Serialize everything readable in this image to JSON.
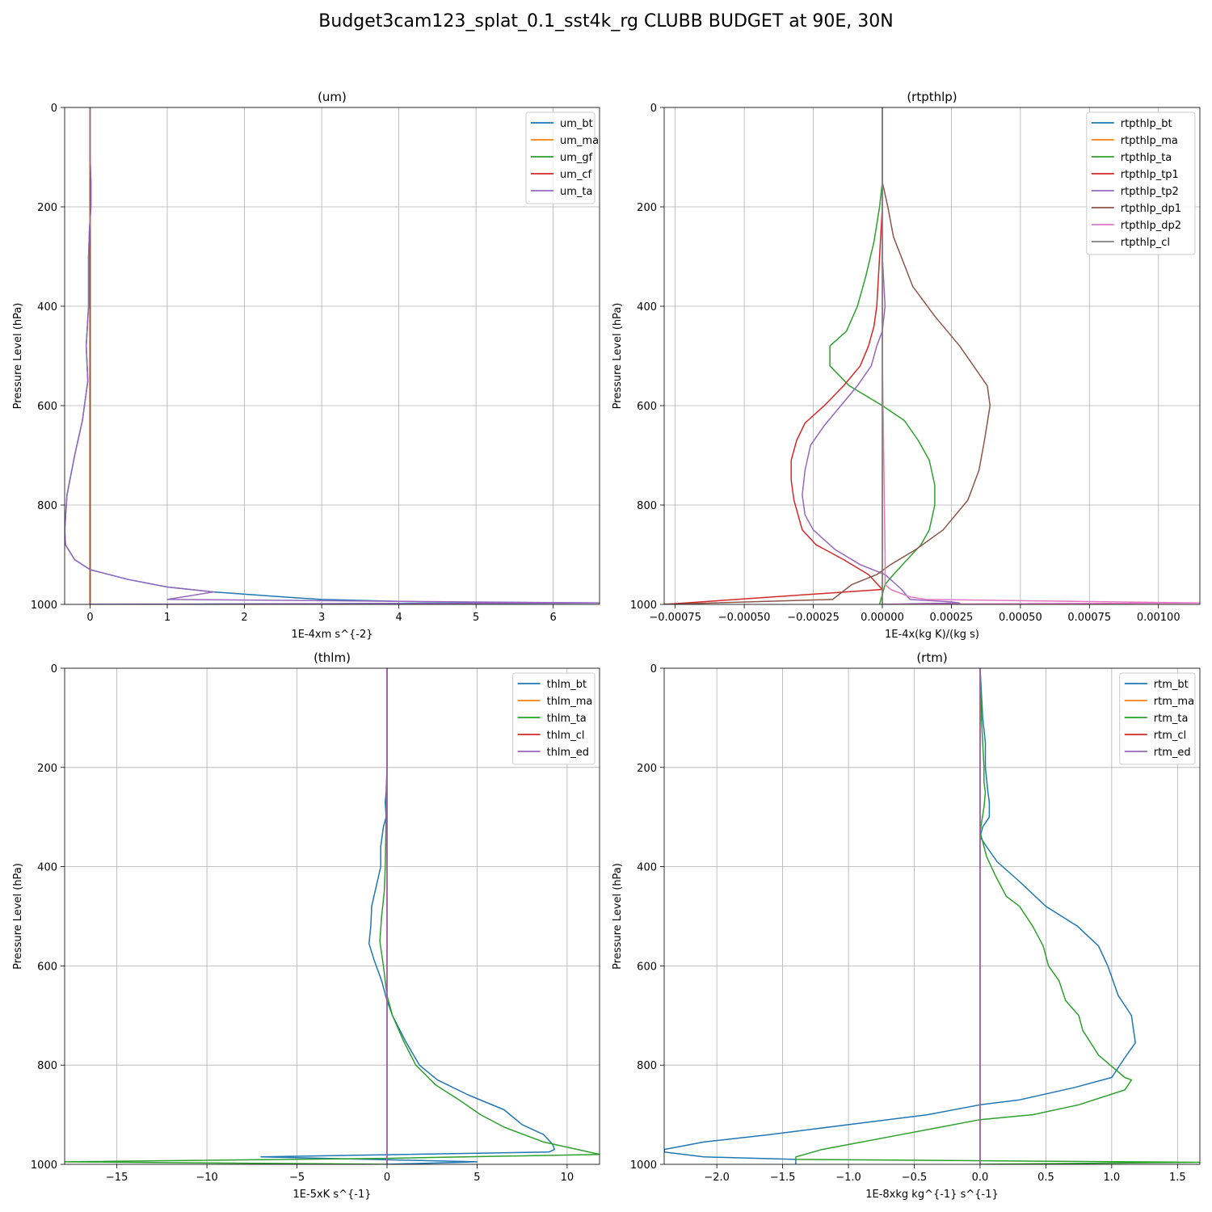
{
  "suptitle": "Budget3cam123_splat_0.1_sst4k_rg CLUBB BUDGET at 90E, 30N",
  "colors": {
    "C0": "#1f77b4",
    "C1": "#ff7f0e",
    "C2": "#2ca02c",
    "C3": "#d62728",
    "C4": "#9467bd",
    "C5": "#8c564b",
    "C6": "#e377c2",
    "C7": "#7f7f7f",
    "grid": "#b0b0b0"
  },
  "chart_data": [
    {
      "type": "line",
      "title": "(um)",
      "xlabel": "1E-4xm s^{-2}",
      "ylabel": "Pressure Level (hPa)",
      "xlim": [
        -0.33,
        6.6
      ],
      "ylim": [
        1000,
        0
      ],
      "xticks": [
        0,
        1,
        2,
        3,
        4,
        5,
        6
      ],
      "xtick_labels": [
        "0",
        "1",
        "2",
        "3",
        "4",
        "5",
        "6"
      ],
      "yticks": [
        0,
        200,
        400,
        600,
        800,
        1000
      ],
      "ytick_labels": [
        "0",
        "200",
        "400",
        "600",
        "800",
        "1000"
      ],
      "grid": true,
      "legend_position": "top-right",
      "series": [
        {
          "name": "um_bt",
          "color": "C0",
          "x": [
            0,
            0,
            0.01,
            0.01,
            -0.01,
            -0.02,
            -0.02,
            -0.05,
            -0.03,
            -0.1,
            -0.2,
            -0.3,
            -0.33,
            -0.32,
            -0.2,
            0,
            0.5,
            1.0,
            1.6,
            2.5,
            3.0,
            4.3,
            6.6,
            0
          ],
          "y": [
            0,
            100,
            150,
            200,
            250,
            300,
            400,
            480,
            550,
            630,
            700,
            780,
            850,
            880,
            910,
            930,
            950,
            965,
            975,
            985,
            990,
            995,
            997,
            1000
          ]
        },
        {
          "name": "um_ma",
          "color": "C1",
          "x": [
            0,
            0
          ],
          "y": [
            0,
            1000
          ]
        },
        {
          "name": "um_gf",
          "color": "C2",
          "x": [
            0,
            0
          ],
          "y": [
            0,
            1000
          ]
        },
        {
          "name": "um_cf",
          "color": "C3",
          "x": [
            0,
            0,
            0
          ],
          "y": [
            0,
            995,
            1000
          ]
        },
        {
          "name": "um_ta",
          "color": "C4",
          "x": [
            0,
            0,
            0.01,
            0.01,
            -0.01,
            -0.02,
            -0.02,
            -0.05,
            -0.03,
            -0.1,
            -0.2,
            -0.3,
            -0.33,
            -0.32,
            -0.2,
            0,
            0.5,
            1.0,
            1.6,
            1.0,
            6.6,
            0
          ],
          "y": [
            0,
            100,
            150,
            200,
            250,
            300,
            400,
            480,
            550,
            630,
            700,
            780,
            850,
            880,
            910,
            930,
            950,
            965,
            975,
            990,
            997,
            1000
          ]
        }
      ]
    },
    {
      "type": "line",
      "title": "(rtpthlp)",
      "xlabel": "1E-4x(kg K)/(kg s)",
      "ylabel": "Pressure Level (hPa)",
      "xlim": [
        -0.00079,
        0.00115
      ],
      "ylim": [
        1000,
        0
      ],
      "xticks": [
        -0.00075,
        -0.0005,
        -0.00025,
        0,
        0.00025,
        0.0005,
        0.00075,
        0.001
      ],
      "xtick_labels": [
        "−0.00075",
        "−0.00050",
        "−0.00025",
        "0.00000",
        "0.00025",
        "0.00050",
        "0.00075",
        "0.00100"
      ],
      "yticks": [
        0,
        200,
        400,
        600,
        800,
        1000
      ],
      "ytick_labels": [
        "0",
        "200",
        "400",
        "600",
        "800",
        "1000"
      ],
      "grid": true,
      "legend_position": "top-right",
      "series": [
        {
          "name": "rtpthlp_bt",
          "color": "C0",
          "x": [
            0,
            0,
            0
          ],
          "y": [
            0,
            995,
            1000
          ]
        },
        {
          "name": "rtpthlp_ma",
          "color": "C1",
          "x": [
            0,
            0
          ],
          "y": [
            0,
            1000
          ]
        },
        {
          "name": "rtpthlp_ta",
          "color": "C2",
          "x": [
            0,
            0,
            -1e-05,
            -3e-05,
            -6e-05,
            -9e-05,
            -0.00013,
            -0.00019,
            -0.00019,
            -0.00012,
            0,
            8e-05,
            0.00013,
            0.00017,
            0.00019,
            0.00019,
            0.00017,
            0.00014,
            9e-05,
            4e-05,
            1e-05,
            0,
            -1e-05
          ],
          "y": [
            0,
            150,
            200,
            270,
            340,
            400,
            450,
            480,
            520,
            560,
            600,
            630,
            670,
            710,
            760,
            800,
            850,
            880,
            910,
            940,
            960,
            980,
            1000
          ]
        },
        {
          "name": "rtpthlp_tp1",
          "color": "C3",
          "x": [
            0,
            0,
            -1e-05,
            -2e-05,
            -3e-05,
            -5e-05,
            -8e-05,
            -0.00014,
            -0.00021,
            -0.00028,
            -0.00031,
            -0.00033,
            -0.00033,
            -0.00032,
            -0.00029,
            -0.00024,
            -0.00014,
            -5e-05,
            0,
            -0.00079
          ],
          "y": [
            0,
            200,
            300,
            400,
            440,
            480,
            520,
            560,
            600,
            635,
            670,
            710,
            750,
            790,
            850,
            880,
            910,
            940,
            970,
            1000
          ]
        },
        {
          "name": "rtpthlp_tp2",
          "color": "C4",
          "x": [
            0,
            0,
            1e-05,
            0,
            -2e-05,
            -4e-05,
            -9e-05,
            -0.00015,
            -0.00021,
            -0.00026,
            -0.00028,
            -0.00029,
            -0.00028,
            -0.00025,
            -0.00017,
            -8e-05,
            1e-05,
            7e-05,
            0.0001,
            0.00025,
            0.00028,
            0
          ],
          "y": [
            0,
            300,
            400,
            450,
            480,
            520,
            560,
            600,
            640,
            680,
            730,
            780,
            820,
            850,
            890,
            920,
            940,
            970,
            990,
            995,
            997,
            1000
          ]
        },
        {
          "name": "rtpthlp_dp1",
          "color": "C5",
          "x": [
            0,
            0,
            2e-05,
            4e-05,
            0.00011,
            0.00019,
            0.00028,
            0.00033,
            0.00038,
            0.00039,
            0.00037,
            0.00035,
            0.00031,
            0.00022,
            0.00012,
            3e-05,
            -2e-05,
            -0.00011,
            -0.00018,
            -0.00079
          ],
          "y": [
            0,
            150,
            200,
            260,
            360,
            420,
            480,
            520,
            560,
            600,
            670,
            730,
            790,
            850,
            890,
            920,
            940,
            960,
            990,
            1000
          ]
        },
        {
          "name": "rtpthlp_dp2",
          "color": "C6",
          "x": [
            0,
            0,
            1e-05,
            1e-05,
            3e-05,
            0.0001,
            0.00016,
            0.00115,
            0
          ],
          "y": [
            0,
            500,
            900,
            960,
            970,
            985,
            990,
            997,
            1000
          ]
        },
        {
          "name": "rtpthlp_cl",
          "color": "C7",
          "x": [
            0,
            0
          ],
          "y": [
            0,
            1000
          ]
        }
      ]
    },
    {
      "type": "line",
      "title": "(thlm)",
      "xlabel": "1E-5xK s^{-1}",
      "ylabel": "Pressure Level (hPa)",
      "xlim": [
        -17.9,
        11.8
      ],
      "ylim": [
        1000,
        0
      ],
      "xticks": [
        -15,
        -10,
        -5,
        0,
        5,
        10
      ],
      "xtick_labels": [
        "−15",
        "−10",
        "−5",
        "0",
        "5",
        "10"
      ],
      "yticks": [
        0,
        200,
        400,
        600,
        800,
        1000
      ],
      "ytick_labels": [
        "0",
        "200",
        "400",
        "600",
        "800",
        "1000"
      ],
      "grid": true,
      "legend_position": "top-right",
      "series": [
        {
          "name": "thlm_bt",
          "color": "C0",
          "x": [
            0,
            0,
            -0.05,
            -0.1,
            -0.05,
            -0.2,
            -0.35,
            -0.35,
            -0.85,
            -0.9,
            -1.0,
            -0.7,
            -0.3,
            0,
            0.3,
            1.0,
            1.8,
            2.8,
            4.5,
            6.5,
            7.5,
            8.7,
            9.2,
            9.3,
            9.0,
            -7.0,
            5.0,
            0
          ],
          "y": [
            0,
            200,
            250,
            270,
            300,
            320,
            360,
            400,
            480,
            520,
            555,
            590,
            630,
            670,
            700,
            750,
            800,
            830,
            860,
            890,
            920,
            940,
            960,
            970,
            975,
            985,
            995,
            1000
          ]
        },
        {
          "name": "thlm_ma",
          "color": "C1",
          "x": [
            0,
            0
          ],
          "y": [
            0,
            1000
          ]
        },
        {
          "name": "thlm_ta",
          "color": "C2",
          "x": [
            0,
            0,
            -0.05,
            -0.1,
            -0.15,
            -0.3,
            -0.4,
            -0.2,
            0,
            0.3,
            0.9,
            1.6,
            2.7,
            4.0,
            5.2,
            6.5,
            8.7,
            11.8,
            0,
            -17.9,
            0
          ],
          "y": [
            0,
            200,
            300,
            400,
            450,
            500,
            550,
            600,
            660,
            700,
            750,
            800,
            840,
            870,
            900,
            925,
            955,
            980,
            988,
            995,
            1000
          ]
        },
        {
          "name": "thlm_cl",
          "color": "C3",
          "x": [
            0,
            0
          ],
          "y": [
            0,
            1000
          ]
        },
        {
          "name": "thlm_ed",
          "color": "C4",
          "x": [
            0,
            0
          ],
          "y": [
            0,
            1000
          ]
        }
      ]
    },
    {
      "type": "line",
      "title": "(rtm)",
      "xlabel": "1E-8xkg kg^{-1} s^{-1}",
      "ylabel": "Pressure Level (hPa)",
      "xlim": [
        -2.4,
        1.67
      ],
      "ylim": [
        1000,
        0
      ],
      "xticks": [
        -2.0,
        -1.5,
        -1.0,
        -0.5,
        0,
        0.5,
        1.0,
        1.5
      ],
      "xtick_labels": [
        "−2.0",
        "−1.5",
        "−1.0",
        "−0.5",
        "0.0",
        "0.5",
        "1.0",
        "1.5"
      ],
      "yticks": [
        0,
        200,
        400,
        600,
        800,
        1000
      ],
      "ytick_labels": [
        "0",
        "200",
        "400",
        "600",
        "800",
        "1000"
      ],
      "grid": true,
      "legend_position": "top-right",
      "series": [
        {
          "name": "rtm_bt",
          "color": "C0",
          "x": [
            0,
            0.02,
            0.04,
            0.04,
            0.06,
            0.07,
            0.07,
            0.02,
            0,
            0.05,
            0.13,
            0.3,
            0.5,
            0.74,
            0.9,
            0.97,
            1.05,
            1.15,
            1.18,
            1.1,
            1.0,
            0.72,
            0.3,
            0,
            -0.4,
            -1.0,
            -1.6,
            -2.1,
            -2.4,
            -2.4,
            -2.1,
            -1.4,
            -1.4
          ],
          "y": [
            0,
            100,
            150,
            200,
            250,
            270,
            300,
            320,
            340,
            360,
            390,
            430,
            480,
            520,
            560,
            600,
            660,
            700,
            755,
            785,
            825,
            845,
            870,
            880,
            900,
            920,
            940,
            955,
            970,
            975,
            985,
            990,
            1000
          ]
        },
        {
          "name": "rtm_ma",
          "color": "C1",
          "x": [
            0,
            0
          ],
          "y": [
            0,
            1000
          ]
        },
        {
          "name": "rtm_ta",
          "color": "C2",
          "x": [
            0,
            0.01,
            0.03,
            0.03,
            0.04,
            0.03,
            0,
            0.05,
            0.12,
            0.2,
            0.3,
            0.4,
            0.48,
            0.52,
            0.6,
            0.65,
            0.75,
            0.78,
            0.9,
            1.1,
            1.15,
            1.1,
            0.75,
            0.4,
            0,
            -0.6,
            -1.2,
            -1.4,
            -1.4,
            1.67,
            0
          ],
          "y": [
            0,
            100,
            200,
            230,
            250,
            280,
            330,
            380,
            420,
            460,
            480,
            520,
            560,
            600,
            630,
            670,
            700,
            730,
            780,
            825,
            830,
            850,
            880,
            900,
            910,
            940,
            970,
            985,
            990,
            996,
            1000
          ]
        },
        {
          "name": "rtm_cl",
          "color": "C3",
          "x": [
            0,
            0
          ],
          "y": [
            0,
            1000
          ]
        },
        {
          "name": "rtm_ed",
          "color": "C4",
          "x": [
            0,
            0
          ],
          "y": [
            0,
            1000
          ]
        }
      ]
    }
  ]
}
